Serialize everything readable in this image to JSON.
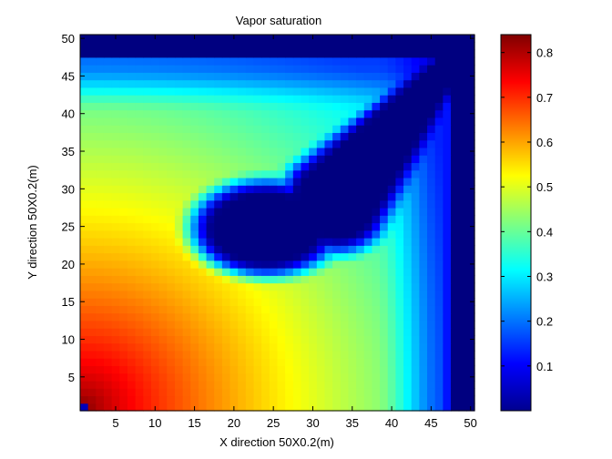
{
  "chart_data": {
    "type": "heatmap",
    "title": "Vapor saturation",
    "xlabel": "X direction 50X0.2(m)",
    "ylabel": "Y direction 50X0.2(m)",
    "grid_size": [
      50,
      50
    ],
    "xlim": [
      0.5,
      50.5
    ],
    "ylim": [
      0.5,
      50.5
    ],
    "x_ticks": [
      5,
      10,
      15,
      20,
      25,
      30,
      35,
      40,
      45,
      50
    ],
    "y_ticks": [
      5,
      10,
      15,
      20,
      25,
      30,
      35,
      40,
      45,
      50
    ],
    "colormap": "jet",
    "clim": [
      0.0,
      0.84
    ],
    "colorbar_ticks": [
      0.1,
      0.2,
      0.3,
      0.4,
      0.5,
      0.6,
      0.7,
      0.8
    ],
    "colorbar_placement": "right",
    "grid": false,
    "description_of_field": {
      "max_value": 0.84,
      "max_location": [
        1,
        1
      ],
      "min_value": 0.0,
      "zero_regions": [
        "cavity x 17-33 y 20-30 extending to (50,50)",
        "top band y 48-50",
        "right band x 48-50"
      ]
    }
  }
}
